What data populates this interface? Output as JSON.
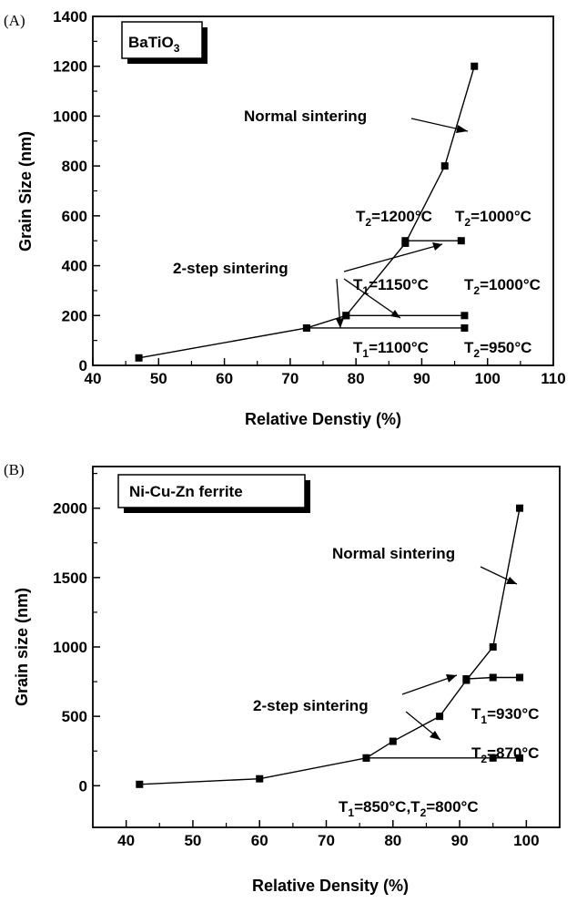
{
  "chart_data": [
    {
      "type": "line",
      "panel_label": "(A)",
      "legend_box": {
        "main": "BaTiO",
        "sub": "3"
      },
      "xlabel": "Relative Denstiy (%)",
      "ylabel": "Grain Size (nm)",
      "xlim": [
        40,
        110
      ],
      "ylim": [
        0,
        1400
      ],
      "xticks": [
        "40",
        "50",
        "60",
        "70",
        "80",
        "90",
        "100",
        "110"
      ],
      "yticks": [
        "0",
        "200",
        "400",
        "600",
        "800",
        "1000",
        "1200",
        "1400"
      ],
      "series": [
        {
          "name": "Normal sintering",
          "x": [
            47,
            72.5,
            78.5,
            87.5,
            93.5,
            98
          ],
          "y": [
            30,
            150,
            200,
            490,
            800,
            1200
          ]
        },
        {
          "name": "2-step sintering",
          "x": [
            72.5,
            96.5
          ],
          "y": [
            150,
            150
          ]
        },
        {
          "name": "2-step sintering",
          "x": [
            78.5,
            96.5
          ],
          "y": [
            200,
            200
          ]
        },
        {
          "name": "2-step sintering",
          "x": [
            87.5,
            96
          ],
          "y": [
            500,
            500
          ]
        }
      ],
      "annotations": [
        {
          "text": "Normal sintering"
        },
        {
          "text": "2-step sintering"
        },
        {
          "t": "T",
          "s": "2",
          "rest": "=1200°C"
        },
        {
          "t": "T",
          "s": "2",
          "rest": "=1000°C"
        },
        {
          "t": "T",
          "s": "1",
          "rest": "=1150°C"
        },
        {
          "t": "T",
          "s": "2",
          "rest": "=1000°C"
        },
        {
          "t": "T",
          "s": "1",
          "rest": "=1100°C"
        },
        {
          "t": "T",
          "s": "2",
          "rest": "=950°C"
        }
      ]
    },
    {
      "type": "line",
      "panel_label": "(B)",
      "legend_box": {
        "main": "Ni-Cu-Zn ferrite",
        "sub": ""
      },
      "xlabel": "Relative Density (%)",
      "ylabel": "Grain size (nm)",
      "xlim": [
        35,
        105
      ],
      "ylim": [
        -300,
        2300
      ],
      "xticks": [
        "40",
        "50",
        "60",
        "70",
        "80",
        "90",
        "100"
      ],
      "yticks": [
        "0",
        "500",
        "1000",
        "1500",
        "2000"
      ],
      "series": [
        {
          "name": "Normal sintering",
          "x": [
            42,
            60,
            76,
            80,
            87,
            91,
            95,
            99
          ],
          "y": [
            10,
            50,
            200,
            320,
            500,
            760,
            1000,
            2000
          ]
        },
        {
          "name": "2-step sintering",
          "x": [
            91,
            95,
            99
          ],
          "y": [
            770,
            780,
            780
          ]
        },
        {
          "name": "2-step sintering",
          "x": [
            76,
            95,
            99
          ],
          "y": [
            200,
            200,
            200
          ]
        }
      ],
      "annotations": [
        {
          "text": "Normal sintering"
        },
        {
          "text": "2-step sintering"
        },
        {
          "t": "T",
          "s": "1",
          "rest": "=930°C"
        },
        {
          "t": "T",
          "s": "2",
          "rest": "=870°C"
        },
        {
          "t": "T",
          "s": "1",
          "rest": "=850°C,T",
          "s2": "2",
          "rest2": "=800°C"
        }
      ]
    }
  ]
}
